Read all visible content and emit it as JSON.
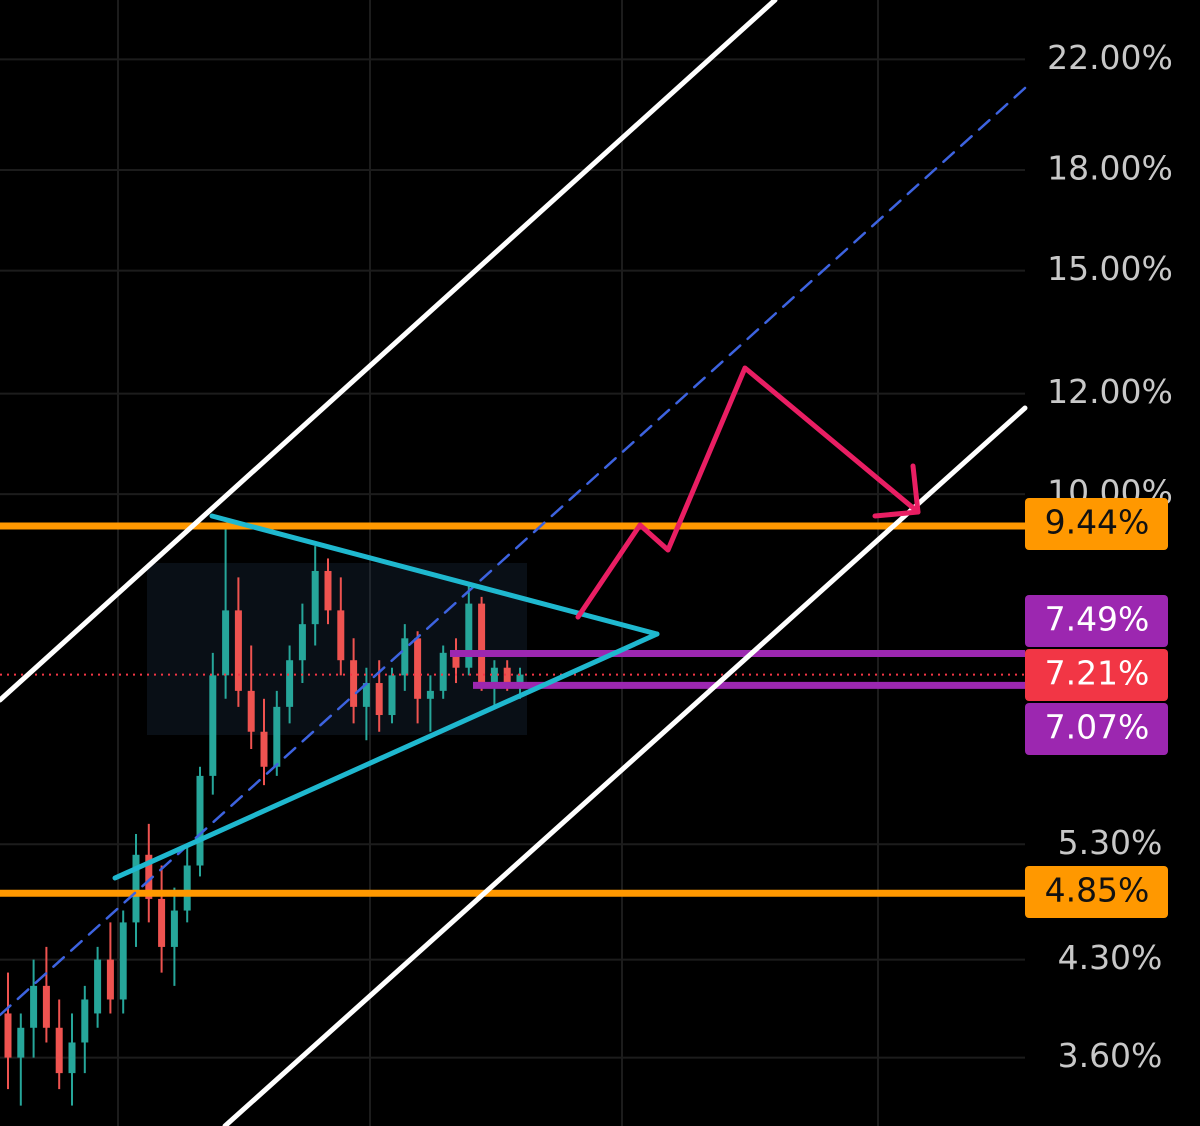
{
  "chart_data": {
    "type": "candlestick",
    "log_scale": true,
    "ylim": [
      3.18,
      24.5
    ],
    "yticks": [
      {
        "value": 22,
        "label": "22.00%"
      },
      {
        "value": 18,
        "label": "18.00%"
      },
      {
        "value": 15,
        "label": "15.00%"
      },
      {
        "value": 12,
        "label": "12.00%"
      },
      {
        "value": 10,
        "label": "10.00%"
      },
      {
        "value": 5.3,
        "label": "5.30%"
      },
      {
        "value": 4.3,
        "label": "4.30%"
      },
      {
        "value": 3.6,
        "label": "3.60%"
      }
    ],
    "grid": true,
    "up_color": "#26a69a",
    "down_color": "#ef5350",
    "open": [
      3.9,
      3.6,
      3.8,
      4.1,
      3.8,
      3.5,
      3.7,
      3.9,
      4.3,
      4.0,
      4.6,
      5.2,
      4.8,
      4.4,
      4.7,
      5.1,
      6.0,
      7.2,
      8.1,
      7.0,
      6.5,
      6.1,
      6.8,
      7.4,
      7.9,
      8.7,
      8.1,
      7.4,
      6.8,
      7.1,
      6.7,
      7.2,
      7.7,
      6.9,
      7.0,
      7.5,
      7.3,
      8.2,
      7.1,
      7.3,
      7.1
    ],
    "high": [
      4.2,
      3.9,
      4.3,
      4.4,
      4.0,
      3.9,
      4.1,
      4.4,
      4.6,
      4.7,
      5.4,
      5.5,
      5.1,
      4.9,
      5.3,
      6.1,
      7.5,
      9.4,
      8.6,
      7.6,
      6.9,
      7.0,
      7.6,
      8.2,
      9.1,
      8.9,
      8.6,
      7.7,
      7.3,
      7.4,
      7.3,
      7.9,
      7.8,
      7.2,
      7.6,
      7.7,
      8.5,
      8.3,
      7.4,
      7.4,
      7.3
    ],
    "low": [
      3.4,
      3.3,
      3.6,
      3.7,
      3.4,
      3.3,
      3.5,
      3.8,
      3.9,
      3.9,
      4.4,
      4.6,
      4.2,
      4.1,
      4.6,
      5.0,
      5.8,
      6.9,
      6.8,
      6.3,
      5.9,
      6.0,
      6.6,
      7.1,
      7.6,
      7.9,
      7.2,
      6.6,
      6.4,
      6.5,
      6.6,
      7.0,
      6.6,
      6.5,
      6.9,
      7.1,
      7.2,
      7.0,
      6.8,
      7.0,
      6.9
    ],
    "close": [
      3.6,
      3.8,
      4.1,
      3.8,
      3.5,
      3.7,
      4.0,
      4.3,
      4.0,
      4.6,
      5.2,
      4.8,
      4.4,
      4.7,
      5.1,
      6.0,
      7.2,
      8.1,
      7.0,
      6.5,
      6.1,
      6.8,
      7.4,
      7.9,
      8.7,
      8.1,
      7.4,
      6.8,
      7.1,
      6.7,
      7.2,
      7.7,
      6.9,
      7.0,
      7.5,
      7.3,
      8.2,
      7.1,
      7.3,
      7.1,
      7.21
    ],
    "levels": {
      "values": [
        9.44,
        7.49,
        7.21,
        7.07,
        4.85
      ],
      "value_labels": [
        "9.44%",
        "7.49%",
        "7.21%",
        "7.07%",
        "4.85%"
      ],
      "colors": [
        "#ff9800",
        "#9c27b0",
        "#f23645",
        "#9c27b0",
        "#ff9800"
      ]
    }
  }
}
